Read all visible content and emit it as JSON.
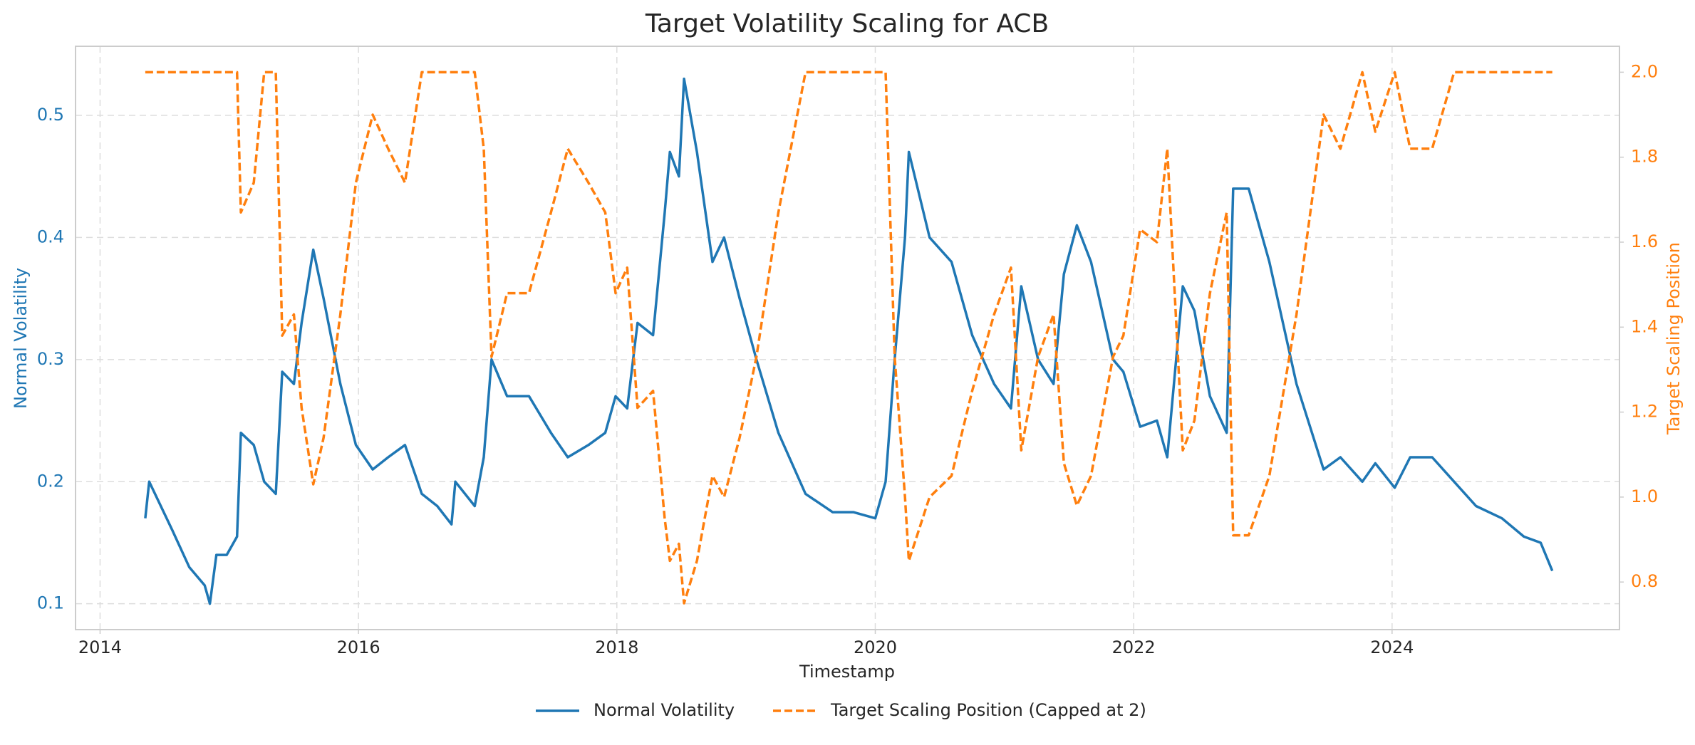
{
  "chart_data": {
    "type": "line",
    "title": "Target Volatility Scaling for ACB",
    "x_label": "Timestamp",
    "y_label": "Normal Volatility",
    "y2_label": "Target Scaling Position",
    "grid": true,
    "legend": "bottom",
    "xlim": [
      2013.81,
      2025.76
    ],
    "xticks": [
      2014,
      2016,
      2018,
      2020,
      2022,
      2024
    ],
    "ylim": [
      0.0788,
      0.5566
    ],
    "yticks": [
      0.1,
      0.2,
      0.3,
      0.4,
      0.5
    ],
    "y2lim": [
      0.688,
      2.061
    ],
    "y2ticks": [
      0.8,
      {
        "value": 1.0,
        "label": "1.0"
      },
      1.2,
      1.4,
      1.6,
      1.8,
      {
        "value": 2.0,
        "label": "2.0"
      }
    ],
    "x": [
      2014.35,
      2014.38,
      2014.56,
      2014.69,
      2014.81,
      2014.85,
      2014.9,
      2014.98,
      2015.06,
      2015.09,
      2015.19,
      2015.27,
      2015.36,
      2015.41,
      2015.5,
      2015.56,
      2015.65,
      2015.73,
      2015.86,
      2015.98,
      2016.11,
      2016.23,
      2016.36,
      2016.49,
      2016.61,
      2016.72,
      2016.75,
      2016.9,
      2016.97,
      2017.03,
      2017.15,
      2017.32,
      2017.49,
      2017.62,
      2017.78,
      2017.91,
      2017.99,
      2018.08,
      2018.16,
      2018.28,
      2018.37,
      2018.41,
      2018.48,
      2018.52,
      2018.62,
      2018.74,
      2018.83,
      2018.95,
      2019.08,
      2019.25,
      2019.46,
      2019.67,
      2019.83,
      2020.0,
      2020.08,
      2020.15,
      2020.23,
      2020.26,
      2020.42,
      2020.59,
      2020.75,
      2020.92,
      2021.05,
      2021.13,
      2021.26,
      2021.38,
      2021.46,
      2021.56,
      2021.67,
      2021.84,
      2021.92,
      2022.05,
      2022.18,
      2022.26,
      2022.38,
      2022.47,
      2022.59,
      2022.72,
      2022.77,
      2022.89,
      2023.05,
      2023.26,
      2023.47,
      2023.6,
      2023.77,
      2023.87,
      2024.02,
      2024.14,
      2024.31,
      2024.48,
      2024.65,
      2024.85,
      2025.02,
      2025.15,
      2025.24
    ],
    "series": [
      {
        "name": "Normal Volatility",
        "color": "#1f77b4",
        "axis": "y",
        "dash": "solid",
        "values": [
          0.17,
          0.2,
          0.16,
          0.13,
          0.115,
          0.1,
          0.14,
          0.14,
          0.155,
          0.24,
          0.23,
          0.2,
          0.19,
          0.29,
          0.28,
          0.33,
          0.39,
          0.35,
          0.28,
          0.23,
          0.21,
          0.22,
          0.23,
          0.19,
          0.18,
          0.165,
          0.2,
          0.18,
          0.22,
          0.3,
          0.27,
          0.27,
          0.24,
          0.22,
          0.23,
          0.24,
          0.27,
          0.26,
          0.33,
          0.32,
          0.42,
          0.47,
          0.45,
          0.53,
          0.47,
          0.38,
          0.4,
          0.35,
          0.3,
          0.24,
          0.19,
          0.175,
          0.175,
          0.17,
          0.2,
          0.3,
          0.4,
          0.47,
          0.4,
          0.38,
          0.32,
          0.28,
          0.26,
          0.36,
          0.3,
          0.28,
          0.37,
          0.41,
          0.38,
          0.3,
          0.29,
          0.245,
          0.25,
          0.22,
          0.36,
          0.34,
          0.27,
          0.24,
          0.44,
          0.44,
          0.38,
          0.28,
          0.21,
          0.22,
          0.2,
          0.215,
          0.195,
          0.22,
          0.22,
          0.2,
          0.18,
          0.17,
          0.155,
          0.15,
          0.127
        ]
      },
      {
        "name": "Target Scaling Position (Capped at 2)",
        "color": "#ff7f0e",
        "axis": "y2",
        "dash": "dashed",
        "values": [
          2,
          2,
          2,
          2,
          2,
          2,
          2,
          2,
          2,
          1.67,
          1.74,
          2,
          2,
          1.38,
          1.43,
          1.21,
          1.03,
          1.14,
          1.43,
          1.74,
          1.9,
          1.82,
          1.74,
          2,
          2,
          2,
          2,
          2,
          1.82,
          1.33,
          1.48,
          1.48,
          1.67,
          1.82,
          1.74,
          1.67,
          1.48,
          1.54,
          1.21,
          1.25,
          0.95,
          0.85,
          0.89,
          0.75,
          0.85,
          1.05,
          1.0,
          1.14,
          1.33,
          1.67,
          2,
          2,
          2,
          2,
          2,
          1.33,
          1.0,
          0.85,
          1.0,
          1.05,
          1.25,
          1.43,
          1.54,
          1.11,
          1.33,
          1.43,
          1.08,
          0.98,
          1.05,
          1.33,
          1.38,
          1.63,
          1.6,
          1.82,
          1.11,
          1.18,
          1.48,
          1.67,
          0.91,
          0.91,
          1.05,
          1.43,
          1.9,
          1.82,
          2,
          1.86,
          2,
          1.82,
          1.82,
          2,
          2,
          2,
          2,
          2,
          2
        ]
      }
    ]
  }
}
